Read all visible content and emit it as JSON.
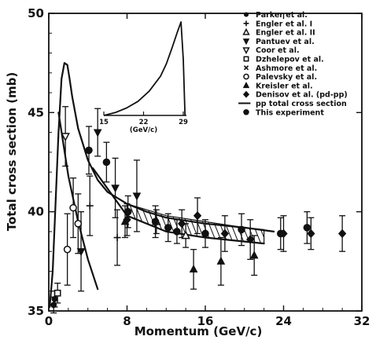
{
  "chart_data": {
    "type": "scatter",
    "xlabel": "Momentum  (GeV/c)",
    "ylabel": "Total cross section (mb)",
    "xlim": [
      0,
      32
    ],
    "ylim": [
      35,
      50
    ],
    "xticks": [
      0,
      8,
      16,
      24,
      32
    ],
    "yticks": [
      35,
      40,
      45,
      50
    ],
    "grid": false,
    "legend_placement": "top-right",
    "legend": [
      {
        "label": "Parker et al.",
        "marker": "filled-circle-small"
      },
      {
        "label": "Engler et al. I",
        "marker": "plus"
      },
      {
        "label": "Engler et al. II",
        "marker": "open-triangle-up"
      },
      {
        "label": "Pantuev et al.",
        "marker": "filled-triangle-down"
      },
      {
        "label": "Coor et al.",
        "marker": "open-triangle-down"
      },
      {
        "label": "Dzhelepov et al.",
        "marker": "open-square"
      },
      {
        "label": "Ashmore et al.",
        "marker": "cross"
      },
      {
        "label": "Palevsky et al.",
        "marker": "open-circle"
      },
      {
        "label": "Kreisler et al.",
        "marker": "filled-triangle-up"
      },
      {
        "label": "Denisov et al. (pd-pp)",
        "marker": "filled-diamond"
      },
      {
        "label": "pp total cross section",
        "marker": "line"
      },
      {
        "label": "This experiment",
        "marker": "filled-circle"
      }
    ],
    "series": [
      {
        "name": "Parker et al.",
        "marker": "filled-circle-small",
        "points": [
          {
            "x": 0.5,
            "y": 35.3,
            "err": 0.4
          },
          {
            "x": 0.6,
            "y": 35.6,
            "err": 0.4
          }
        ]
      },
      {
        "name": "Engler et al. I",
        "marker": "plus",
        "points": [
          {
            "x": 4.2,
            "y": 40.3,
            "err": 1.5
          },
          {
            "x": 7.0,
            "y": 38.7,
            "err": 1.4
          }
        ]
      },
      {
        "name": "Engler et al. II",
        "marker": "open-triangle-up",
        "points": [
          {
            "x": 11.0,
            "y": 39.5,
            "err": 0.6
          },
          {
            "x": 14.0,
            "y": 38.8,
            "err": 0.6
          }
        ]
      },
      {
        "name": "Pantuev et al.",
        "marker": "filled-triangle-down",
        "points": [
          {
            "x": 3.3,
            "y": 38.0,
            "err": 2.0
          },
          {
            "x": 5.0,
            "y": 44.0,
            "err": 1.2
          },
          {
            "x": 6.8,
            "y": 41.2,
            "err": 1.5
          },
          {
            "x": 9.0,
            "y": 40.8,
            "err": 1.8
          }
        ]
      },
      {
        "name": "Coor et al.",
        "marker": "open-triangle-down",
        "points": [
          {
            "x": 1.7,
            "y": 43.8,
            "err": 1.5
          }
        ]
      },
      {
        "name": "Dzhelepov et al.",
        "marker": "open-square",
        "points": [
          {
            "x": 0.9,
            "y": 35.9,
            "err": 0.5
          }
        ]
      },
      {
        "name": "Palevsky et al.",
        "marker": "open-circle",
        "points": [
          {
            "x": 1.9,
            "y": 38.1,
            "err": 1.8
          },
          {
            "x": 2.5,
            "y": 40.2,
            "err": 1.5
          },
          {
            "x": 3.0,
            "y": 39.4,
            "err": 1.5
          }
        ]
      },
      {
        "name": "Kreisler et al.",
        "marker": "filled-triangle-up",
        "points": [
          {
            "x": 7.8,
            "y": 39.5,
            "err": 0.8
          },
          {
            "x": 14.8,
            "y": 37.1,
            "err": 1.0
          },
          {
            "x": 17.6,
            "y": 37.5,
            "err": 1.2
          },
          {
            "x": 21.0,
            "y": 37.8,
            "err": 1.0
          }
        ]
      },
      {
        "name": "Denisov et al. (pd-pp)",
        "marker": "filled-diamond",
        "points": [
          {
            "x": 8.0,
            "y": 39.6,
            "err": 0.8
          },
          {
            "x": 13.6,
            "y": 39.4,
            "err": 0.7
          },
          {
            "x": 15.2,
            "y": 39.8,
            "err": 0.9
          },
          {
            "x": 18.0,
            "y": 38.9,
            "err": 0.9
          },
          {
            "x": 20.6,
            "y": 38.6,
            "err": 1.0
          },
          {
            "x": 24.0,
            "y": 38.9,
            "err": 0.9
          },
          {
            "x": 26.8,
            "y": 38.9,
            "err": 0.8
          },
          {
            "x": 30.0,
            "y": 38.9,
            "err": 0.9
          }
        ]
      },
      {
        "name": "This experiment",
        "marker": "filled-circle",
        "points": [
          {
            "x": 4.1,
            "y": 43.1,
            "err": 1.2
          },
          {
            "x": 5.9,
            "y": 42.5,
            "err": 1.0
          },
          {
            "x": 8.1,
            "y": 40.0,
            "err": 0.8
          },
          {
            "x": 10.9,
            "y": 39.5,
            "err": 0.8
          },
          {
            "x": 12.2,
            "y": 39.2,
            "err": 0.7
          },
          {
            "x": 13.1,
            "y": 39.0,
            "err": 0.6
          },
          {
            "x": 16.0,
            "y": 38.9,
            "err": 0.7
          },
          {
            "x": 19.7,
            "y": 39.1,
            "err": 0.8
          },
          {
            "x": 23.7,
            "y": 38.9,
            "err": 0.8
          },
          {
            "x": 26.4,
            "y": 39.2,
            "err": 0.8
          }
        ]
      }
    ],
    "curves": [
      {
        "name": "pp total cross section",
        "x": [
          0.1,
          0.4,
          0.7,
          1.0,
          1.3,
          1.6,
          1.9,
          2.1,
          2.4,
          3.0,
          4.0,
          5.0,
          6.0,
          8.0,
          10.0,
          12.0,
          16.0,
          20.0,
          23.0
        ],
        "y": [
          35.2,
          37.0,
          40.5,
          44.0,
          46.7,
          47.5,
          47.4,
          46.8,
          45.8,
          44.2,
          42.6,
          41.6,
          41.0,
          40.4,
          40.0,
          39.7,
          39.4,
          39.2,
          39.0
        ]
      },
      {
        "name": "steep falling line",
        "x": [
          1.0,
          2.0,
          3.0,
          4.0,
          5.0
        ],
        "y": [
          45.0,
          41.8,
          39.5,
          37.6,
          36.1
        ]
      },
      {
        "name": "lower model line",
        "x": [
          4.5,
          8.0,
          12.0,
          16.0,
          20.0,
          22.0
        ],
        "y": [
          42.2,
          39.8,
          39.0,
          38.7,
          38.5,
          38.4
        ]
      }
    ],
    "hatched_band": {
      "x": [
        8.0,
        12.0,
        16.0,
        20.0,
        22.0
      ],
      "y_low": [
        39.8,
        39.0,
        38.7,
        38.5,
        38.4
      ],
      "y_high": [
        40.4,
        39.8,
        39.5,
        39.2,
        39.1
      ]
    },
    "inset": {
      "xlabel": "(GeV/c)",
      "xlim": [
        15,
        29
      ],
      "xticks": [
        15,
        22,
        29
      ],
      "curve": {
        "x": [
          15,
          17,
          19,
          21,
          23,
          25,
          26,
          27,
          28,
          28.6,
          29,
          29.3
        ],
        "y": [
          0.0,
          0.03,
          0.08,
          0.15,
          0.26,
          0.42,
          0.55,
          0.72,
          0.9,
          1.0,
          0.6,
          0.0
        ]
      }
    }
  }
}
